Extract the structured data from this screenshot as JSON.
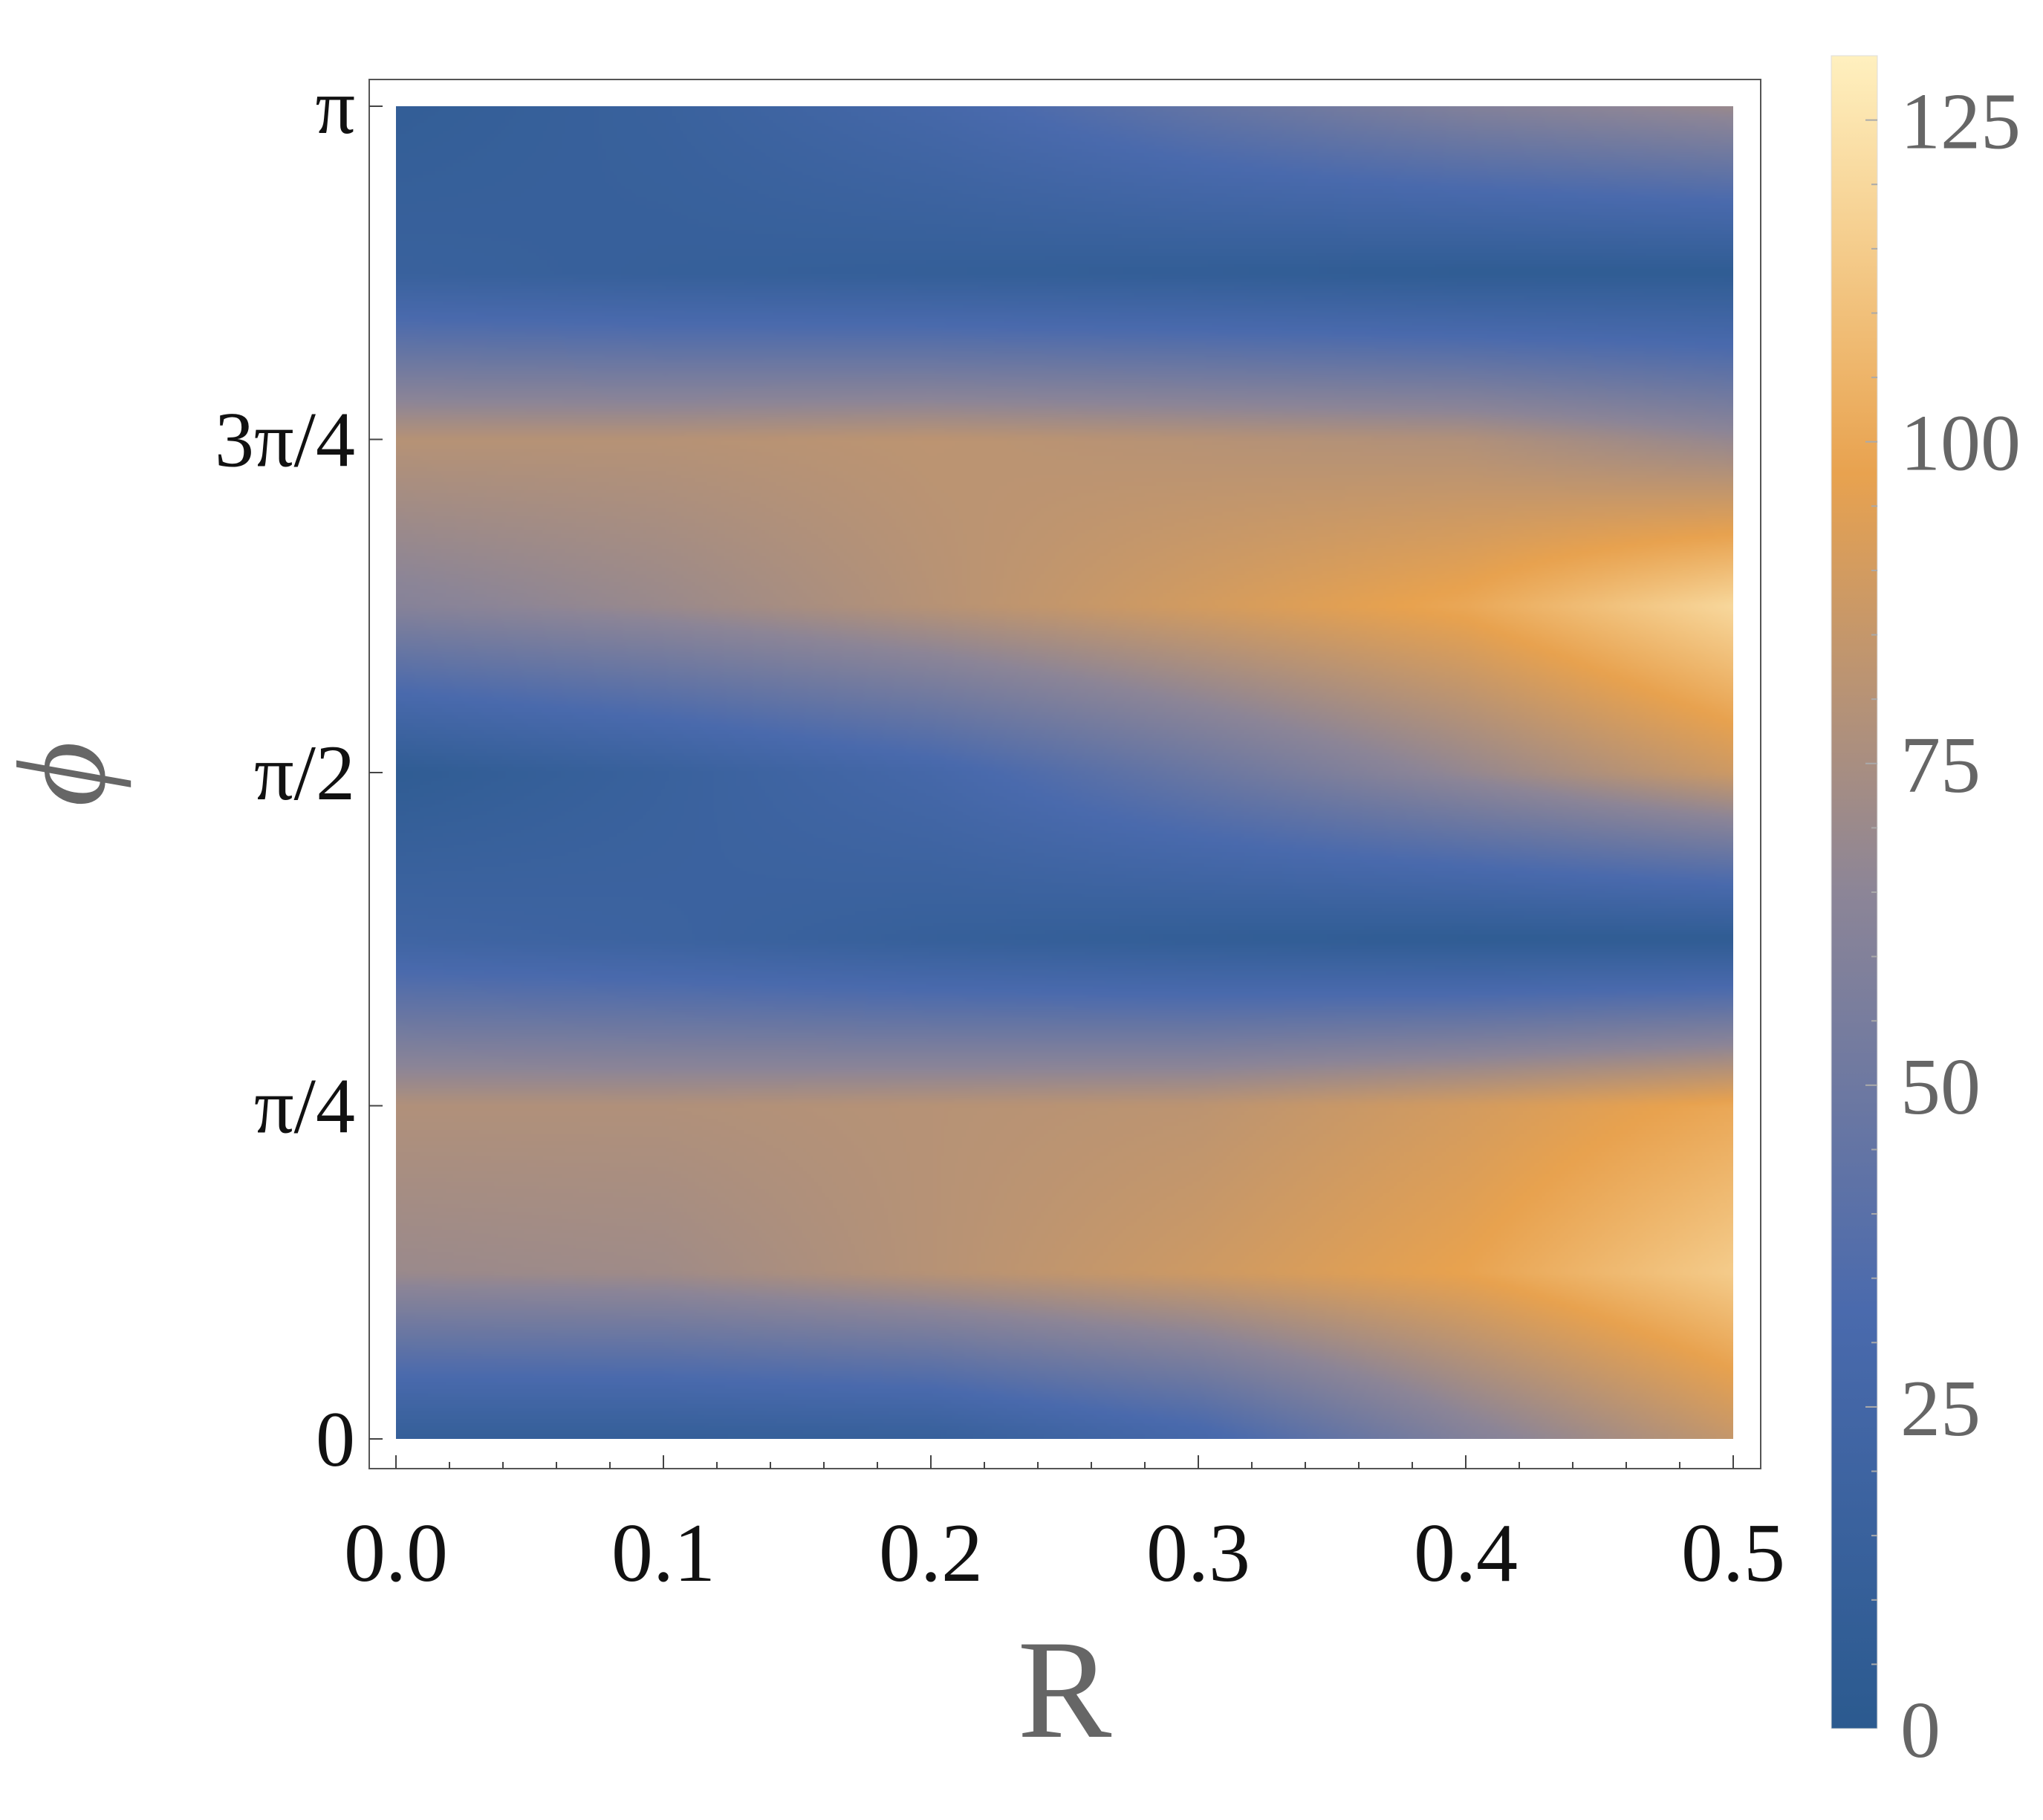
{
  "chart_data": {
    "type": "heatmap",
    "title": "",
    "xlabel": "R",
    "ylabel": "ϕ",
    "xlim": [
      0.0,
      0.5
    ],
    "ylim": [
      0.0,
      3.14159
    ],
    "x_ticks": [
      {
        "value": 0.0,
        "label": "0.0"
      },
      {
        "value": 0.1,
        "label": "0.1"
      },
      {
        "value": 0.2,
        "label": "0.2"
      },
      {
        "value": 0.3,
        "label": "0.3"
      },
      {
        "value": 0.4,
        "label": "0.4"
      },
      {
        "value": 0.5,
        "label": "0.5"
      }
    ],
    "y_ticks": [
      {
        "value": 0.0,
        "label": "0"
      },
      {
        "value": 0.785398,
        "label": "π/4"
      },
      {
        "value": 1.570796,
        "label": "π/2"
      },
      {
        "value": 2.356194,
        "label": "3π/4"
      },
      {
        "value": 3.141593,
        "label": "π"
      }
    ],
    "colorbar": {
      "range": [
        0,
        130
      ],
      "ticks": [
        {
          "value": 0,
          "label": "0"
        },
        {
          "value": 25,
          "label": "25"
        },
        {
          "value": 50,
          "label": "50"
        },
        {
          "value": 75,
          "label": "75"
        },
        {
          "value": 100,
          "label": "100"
        },
        {
          "value": 125,
          "label": "125"
        }
      ],
      "colors": [
        "#2b5a8f",
        "#4a6aad",
        "#8c8597",
        "#e8a24f",
        "#fff0bf"
      ]
    },
    "x": [
      0.0,
      0.1,
      0.2,
      0.3,
      0.4,
      0.5
    ],
    "y": [
      0.0,
      0.3927,
      0.7854,
      1.1781,
      1.5708,
      1.9635,
      2.3562,
      2.7489,
      3.1416
    ],
    "z": [
      [
        10,
        10,
        12,
        28,
        60,
        85
      ],
      [
        70,
        72,
        80,
        88,
        98,
        115
      ],
      [
        78,
        78,
        80,
        82,
        90,
        100
      ],
      [
        22,
        18,
        12,
        8,
        5,
        5
      ],
      [
        5,
        15,
        28,
        48,
        68,
        88
      ],
      [
        62,
        70,
        80,
        90,
        100,
        120
      ],
      [
        80,
        80,
        82,
        80,
        78,
        68
      ],
      [
        15,
        12,
        10,
        8,
        5,
        5
      ],
      [
        8,
        15,
        28,
        45,
        60,
        70
      ]
    ]
  }
}
